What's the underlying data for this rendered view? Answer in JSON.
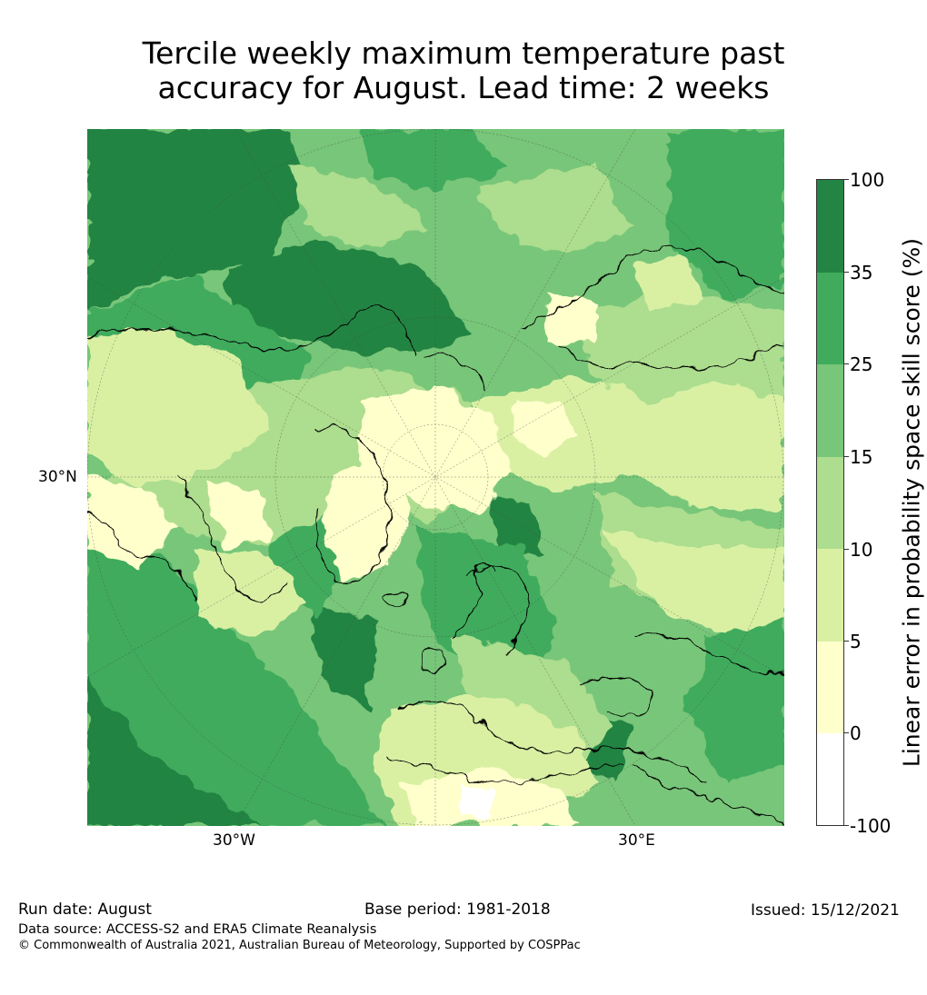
{
  "title": {
    "line1": "Tercile weekly maximum temperature past",
    "line2": "accuracy for August. Lead time: 2 weeks"
  },
  "map": {
    "latitude_label": "30°N",
    "longitude_labels": [
      "30°W",
      "30°E"
    ]
  },
  "colorbar": {
    "label": "Linear error in probability space skill score (%)",
    "ticks": [
      "100",
      "35",
      "25",
      "15",
      "10",
      "5",
      "0",
      "-100"
    ],
    "bins": [
      {
        "range": "35 to 100",
        "color": "#238443"
      },
      {
        "range": "25 to 35",
        "color": "#41ab5d"
      },
      {
        "range": "15 to 25",
        "color": "#78c679"
      },
      {
        "range": "10 to 15",
        "color": "#addd8e"
      },
      {
        "range": "5 to 10",
        "color": "#d9f0a3"
      },
      {
        "range": "0 to 5",
        "color": "#ffffcc"
      },
      {
        "range": "-100 to 0",
        "color": "#ffffff"
      }
    ]
  },
  "footer": {
    "run_date": "Run date: August",
    "base_period": "Base period: 1981-2018",
    "issued": "Issued: 15/12/2021",
    "data_source": "Data source: ACCESS-S2 and ERA5 Climate Reanalysis",
    "copyright": "© Commonwealth of Australia 2021, Australian Bureau of Meteorology, Supported by COSPPac"
  }
}
